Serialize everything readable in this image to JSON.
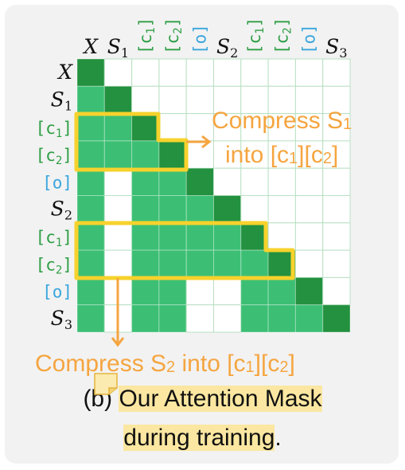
{
  "tokens": [
    {
      "type": "math",
      "base": "X",
      "sub": "",
      "color": "#111111"
    },
    {
      "type": "math",
      "base": "S",
      "sub": "1",
      "color": "#111111"
    },
    {
      "type": "mono",
      "base": "c",
      "sub": "1",
      "color": "#2e9e45"
    },
    {
      "type": "mono",
      "base": "c",
      "sub": "2",
      "color": "#2e9e45"
    },
    {
      "type": "mono",
      "base": "o",
      "sub": "",
      "color": "#3aa6dd"
    },
    {
      "type": "math",
      "base": "S",
      "sub": "2",
      "color": "#111111"
    },
    {
      "type": "mono",
      "base": "c",
      "sub": "1",
      "color": "#2e9e45"
    },
    {
      "type": "mono",
      "base": "c",
      "sub": "2",
      "color": "#2e9e45"
    },
    {
      "type": "mono",
      "base": "o",
      "sub": "",
      "color": "#3aa6dd"
    },
    {
      "type": "math",
      "base": "S",
      "sub": "3",
      "color": "#111111"
    }
  ],
  "mask": [
    [
      2,
      0,
      0,
      0,
      0,
      0,
      0,
      0,
      0,
      0
    ],
    [
      1,
      2,
      0,
      0,
      0,
      0,
      0,
      0,
      0,
      0
    ],
    [
      1,
      1,
      2,
      0,
      0,
      0,
      0,
      0,
      0,
      0
    ],
    [
      1,
      1,
      1,
      2,
      0,
      0,
      0,
      0,
      0,
      0
    ],
    [
      1,
      0,
      1,
      1,
      2,
      0,
      0,
      0,
      0,
      0
    ],
    [
      1,
      0,
      1,
      1,
      1,
      2,
      0,
      0,
      0,
      0
    ],
    [
      1,
      0,
      1,
      1,
      1,
      1,
      2,
      0,
      0,
      0
    ],
    [
      1,
      0,
      1,
      1,
      1,
      1,
      1,
      2,
      0,
      0
    ],
    [
      1,
      0,
      1,
      1,
      0,
      0,
      1,
      1,
      2,
      0
    ],
    [
      1,
      0,
      1,
      1,
      0,
      0,
      1,
      1,
      1,
      2
    ]
  ],
  "colors": {
    "diag": "#23913f",
    "attend": "#3cbf74",
    "empty": "#ffffff",
    "grid": "#b8e0c3",
    "highlight_box": "#f7d22c",
    "annotation": "#f5a540",
    "caption_highlight": "#fbe7a1"
  },
  "annotations": {
    "compress_s1": {
      "line1": "Compress S",
      "line1_sub": "1",
      "line2": "into [c",
      "line2_sub1": "1",
      "line2_mid": "][c",
      "line2_sub2": "2",
      "line2_end": "]"
    },
    "compress_s2": {
      "p1": "Compress S",
      "s1": "2",
      "p2": " into [c",
      "s2": "1",
      "p3": "][c",
      "s3": "2",
      "p4": "]"
    }
  },
  "caption": {
    "prefix": "(b) ",
    "line1_highlight": "Our Attention Mask",
    "line2_highlight": "during training",
    "line2_suffix": "."
  },
  "icons": {
    "note": "sticky-note-icon"
  }
}
